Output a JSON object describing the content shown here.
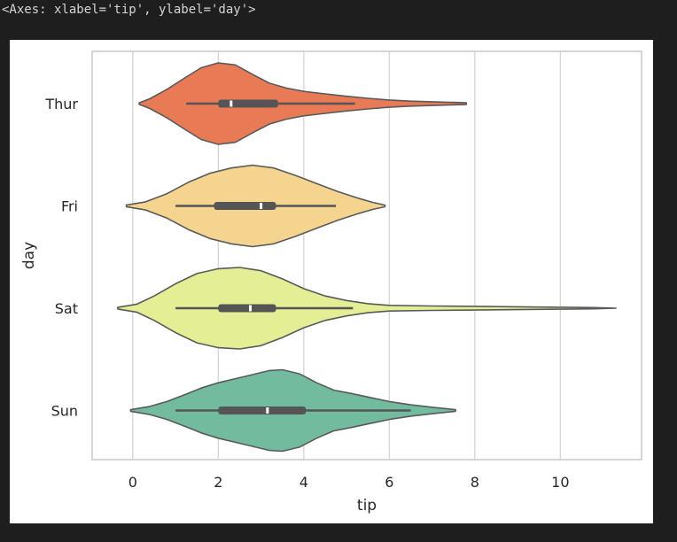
{
  "output_label": "<Axes: xlabel='tip', ylabel='day'>",
  "chart_data": {
    "type": "violin",
    "orientation": "horizontal",
    "xlabel": "tip",
    "ylabel": "day",
    "xlim": [
      -0.95,
      11.9
    ],
    "xticks": [
      0,
      2,
      4,
      6,
      8,
      10
    ],
    "grid": "vertical",
    "palette": "Spectral",
    "categories": [
      {
        "name": "Thur",
        "color": "#e87a56",
        "range": [
          0.15,
          7.8
        ],
        "whisker": [
          1.25,
          5.2
        ],
        "q1": 2.0,
        "median": 2.3,
        "q3": 3.4,
        "density": [
          [
            0.15,
            0.02
          ],
          [
            0.4,
            0.12
          ],
          [
            0.8,
            0.35
          ],
          [
            1.2,
            0.62
          ],
          [
            1.6,
            0.88
          ],
          [
            2.0,
            1.0
          ],
          [
            2.4,
            0.95
          ],
          [
            2.8,
            0.72
          ],
          [
            3.2,
            0.5
          ],
          [
            3.6,
            0.38
          ],
          [
            4.0,
            0.3
          ],
          [
            4.5,
            0.24
          ],
          [
            5.0,
            0.18
          ],
          [
            5.5,
            0.13
          ],
          [
            6.0,
            0.09
          ],
          [
            6.5,
            0.06
          ],
          [
            7.0,
            0.045
          ],
          [
            7.5,
            0.03
          ],
          [
            7.8,
            0.02
          ]
        ]
      },
      {
        "name": "Fri",
        "color": "#f4d48f",
        "range": [
          -0.15,
          5.9
        ],
        "whisker": [
          1.0,
          4.75
        ],
        "q1": 1.9,
        "median": 3.0,
        "q3": 3.35,
        "density": [
          [
            -0.15,
            0.02
          ],
          [
            0.3,
            0.1
          ],
          [
            0.8,
            0.3
          ],
          [
            1.3,
            0.58
          ],
          [
            1.8,
            0.8
          ],
          [
            2.3,
            0.93
          ],
          [
            2.8,
            1.0
          ],
          [
            3.3,
            0.93
          ],
          [
            3.8,
            0.75
          ],
          [
            4.3,
            0.55
          ],
          [
            4.8,
            0.35
          ],
          [
            5.3,
            0.18
          ],
          [
            5.6,
            0.09
          ],
          [
            5.9,
            0.02
          ]
        ]
      },
      {
        "name": "Sat",
        "color": "#e4ee95",
        "range": [
          -0.35,
          11.3
        ],
        "whisker": [
          1.0,
          5.15
        ],
        "q1": 2.0,
        "median": 2.75,
        "q3": 3.35,
        "density": [
          [
            -0.35,
            0.02
          ],
          [
            0.1,
            0.1
          ],
          [
            0.5,
            0.3
          ],
          [
            1.0,
            0.6
          ],
          [
            1.5,
            0.85
          ],
          [
            2.0,
            0.97
          ],
          [
            2.5,
            1.0
          ],
          [
            3.0,
            0.92
          ],
          [
            3.5,
            0.72
          ],
          [
            4.0,
            0.48
          ],
          [
            4.5,
            0.3
          ],
          [
            5.0,
            0.19
          ],
          [
            5.5,
            0.11
          ],
          [
            6.0,
            0.07
          ],
          [
            7.0,
            0.055
          ],
          [
            8.0,
            0.045
          ],
          [
            9.0,
            0.035
          ],
          [
            10.0,
            0.025
          ],
          [
            10.8,
            0.015
          ],
          [
            11.3,
            0.0
          ]
        ]
      },
      {
        "name": "Sun",
        "color": "#72bb9f",
        "range": [
          -0.05,
          7.55
        ],
        "whisker": [
          1.0,
          6.5
        ],
        "q1": 2.0,
        "median": 3.15,
        "q3": 4.05,
        "density": [
          [
            -0.05,
            0.02
          ],
          [
            0.4,
            0.1
          ],
          [
            0.8,
            0.22
          ],
          [
            1.2,
            0.38
          ],
          [
            1.6,
            0.55
          ],
          [
            2.0,
            0.68
          ],
          [
            2.4,
            0.78
          ],
          [
            2.8,
            0.88
          ],
          [
            3.2,
            0.98
          ],
          [
            3.5,
            1.0
          ],
          [
            3.9,
            0.9
          ],
          [
            4.3,
            0.68
          ],
          [
            4.7,
            0.5
          ],
          [
            5.1,
            0.42
          ],
          [
            5.5,
            0.33
          ],
          [
            6.0,
            0.22
          ],
          [
            6.5,
            0.14
          ],
          [
            7.0,
            0.08
          ],
          [
            7.55,
            0.02
          ]
        ]
      }
    ]
  }
}
